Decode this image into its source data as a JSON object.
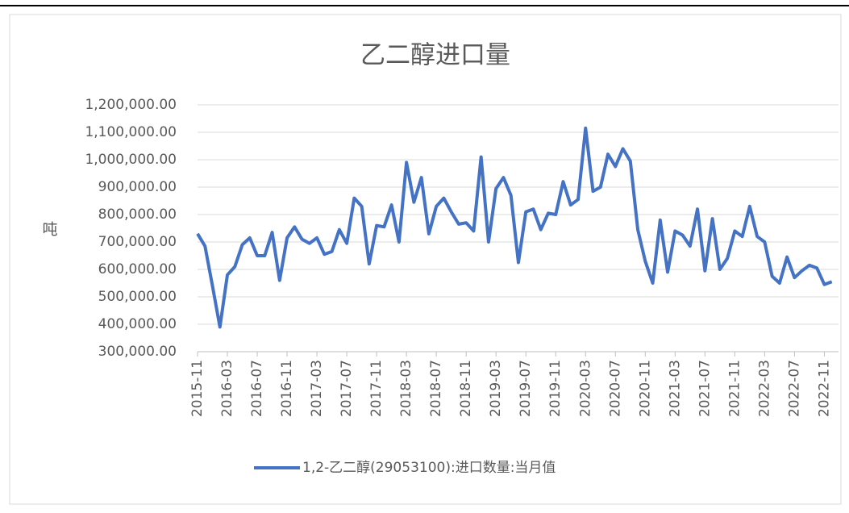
{
  "chart_data": {
    "type": "line",
    "title": "乙二醇进口量",
    "y_label": "吨",
    "categories": [
      "2015-11",
      null,
      null,
      null,
      "2016-03",
      null,
      null,
      null,
      "2016-07",
      null,
      null,
      null,
      "2016-11",
      null,
      null,
      null,
      "2017-03",
      null,
      null,
      null,
      "2017-07",
      null,
      null,
      null,
      "2017-11",
      null,
      null,
      null,
      "2018-03",
      null,
      null,
      null,
      "2018-07",
      null,
      null,
      null,
      "2018-11",
      null,
      null,
      null,
      "2019-03",
      null,
      null,
      null,
      "2019-07",
      null,
      null,
      null,
      "2019-11",
      null,
      null,
      null,
      "2020-03",
      null,
      null,
      null,
      "2020-07",
      null,
      null,
      null,
      "2020-11",
      null,
      null,
      null,
      "2021-03",
      null,
      null,
      null,
      "2021-07",
      null,
      null,
      null,
      "2021-11",
      null,
      null,
      null,
      "2022-03",
      null,
      null,
      null,
      "2022-07",
      null,
      null,
      null,
      "2022-11",
      null
    ],
    "series": [
      {
        "name": "1,2-乙二醇(29053100):进口数量:当月值",
        "color": "#4472c4",
        "values": [
          730000,
          685000,
          540000,
          390000,
          580000,
          610000,
          690000,
          715000,
          650000,
          650000,
          735000,
          560000,
          715000,
          755000,
          710000,
          695000,
          715000,
          655000,
          665000,
          745000,
          695000,
          860000,
          830000,
          620000,
          760000,
          755000,
          835000,
          700000,
          990000,
          845000,
          935000,
          730000,
          830000,
          860000,
          810000,
          765000,
          770000,
          740000,
          1010000,
          700000,
          895000,
          935000,
          870000,
          625000,
          810000,
          820000,
          745000,
          805000,
          800000,
          920000,
          835000,
          855000,
          1115000,
          885000,
          900000,
          1020000,
          975000,
          1040000,
          995000,
          745000,
          630000,
          550000,
          780000,
          590000,
          740000,
          725000,
          685000,
          820000,
          595000,
          785000,
          600000,
          640000,
          740000,
          720000,
          830000,
          720000,
          700000,
          575000,
          550000,
          645000,
          570000,
          595000,
          615000,
          605000,
          545000,
          555000
        ]
      }
    ],
    "ylim": [
      300000,
      1200000
    ],
    "yticks": [
      {
        "value": 300000,
        "label": "300,000.00"
      },
      {
        "value": 400000,
        "label": "400,000.00"
      },
      {
        "value": 500000,
        "label": "500,000.00"
      },
      {
        "value": 600000,
        "label": "600,000.00"
      },
      {
        "value": 700000,
        "label": "700,000.00"
      },
      {
        "value": 800000,
        "label": "800,000.00"
      },
      {
        "value": 900000,
        "label": "900,000.00"
      },
      {
        "value": 1000000,
        "label": "1,000,000.00"
      },
      {
        "value": 1100000,
        "label": "1,100,000.00"
      },
      {
        "value": 1200000,
        "label": "1,200,000.00"
      }
    ],
    "grid": true,
    "legend": "bottom"
  }
}
